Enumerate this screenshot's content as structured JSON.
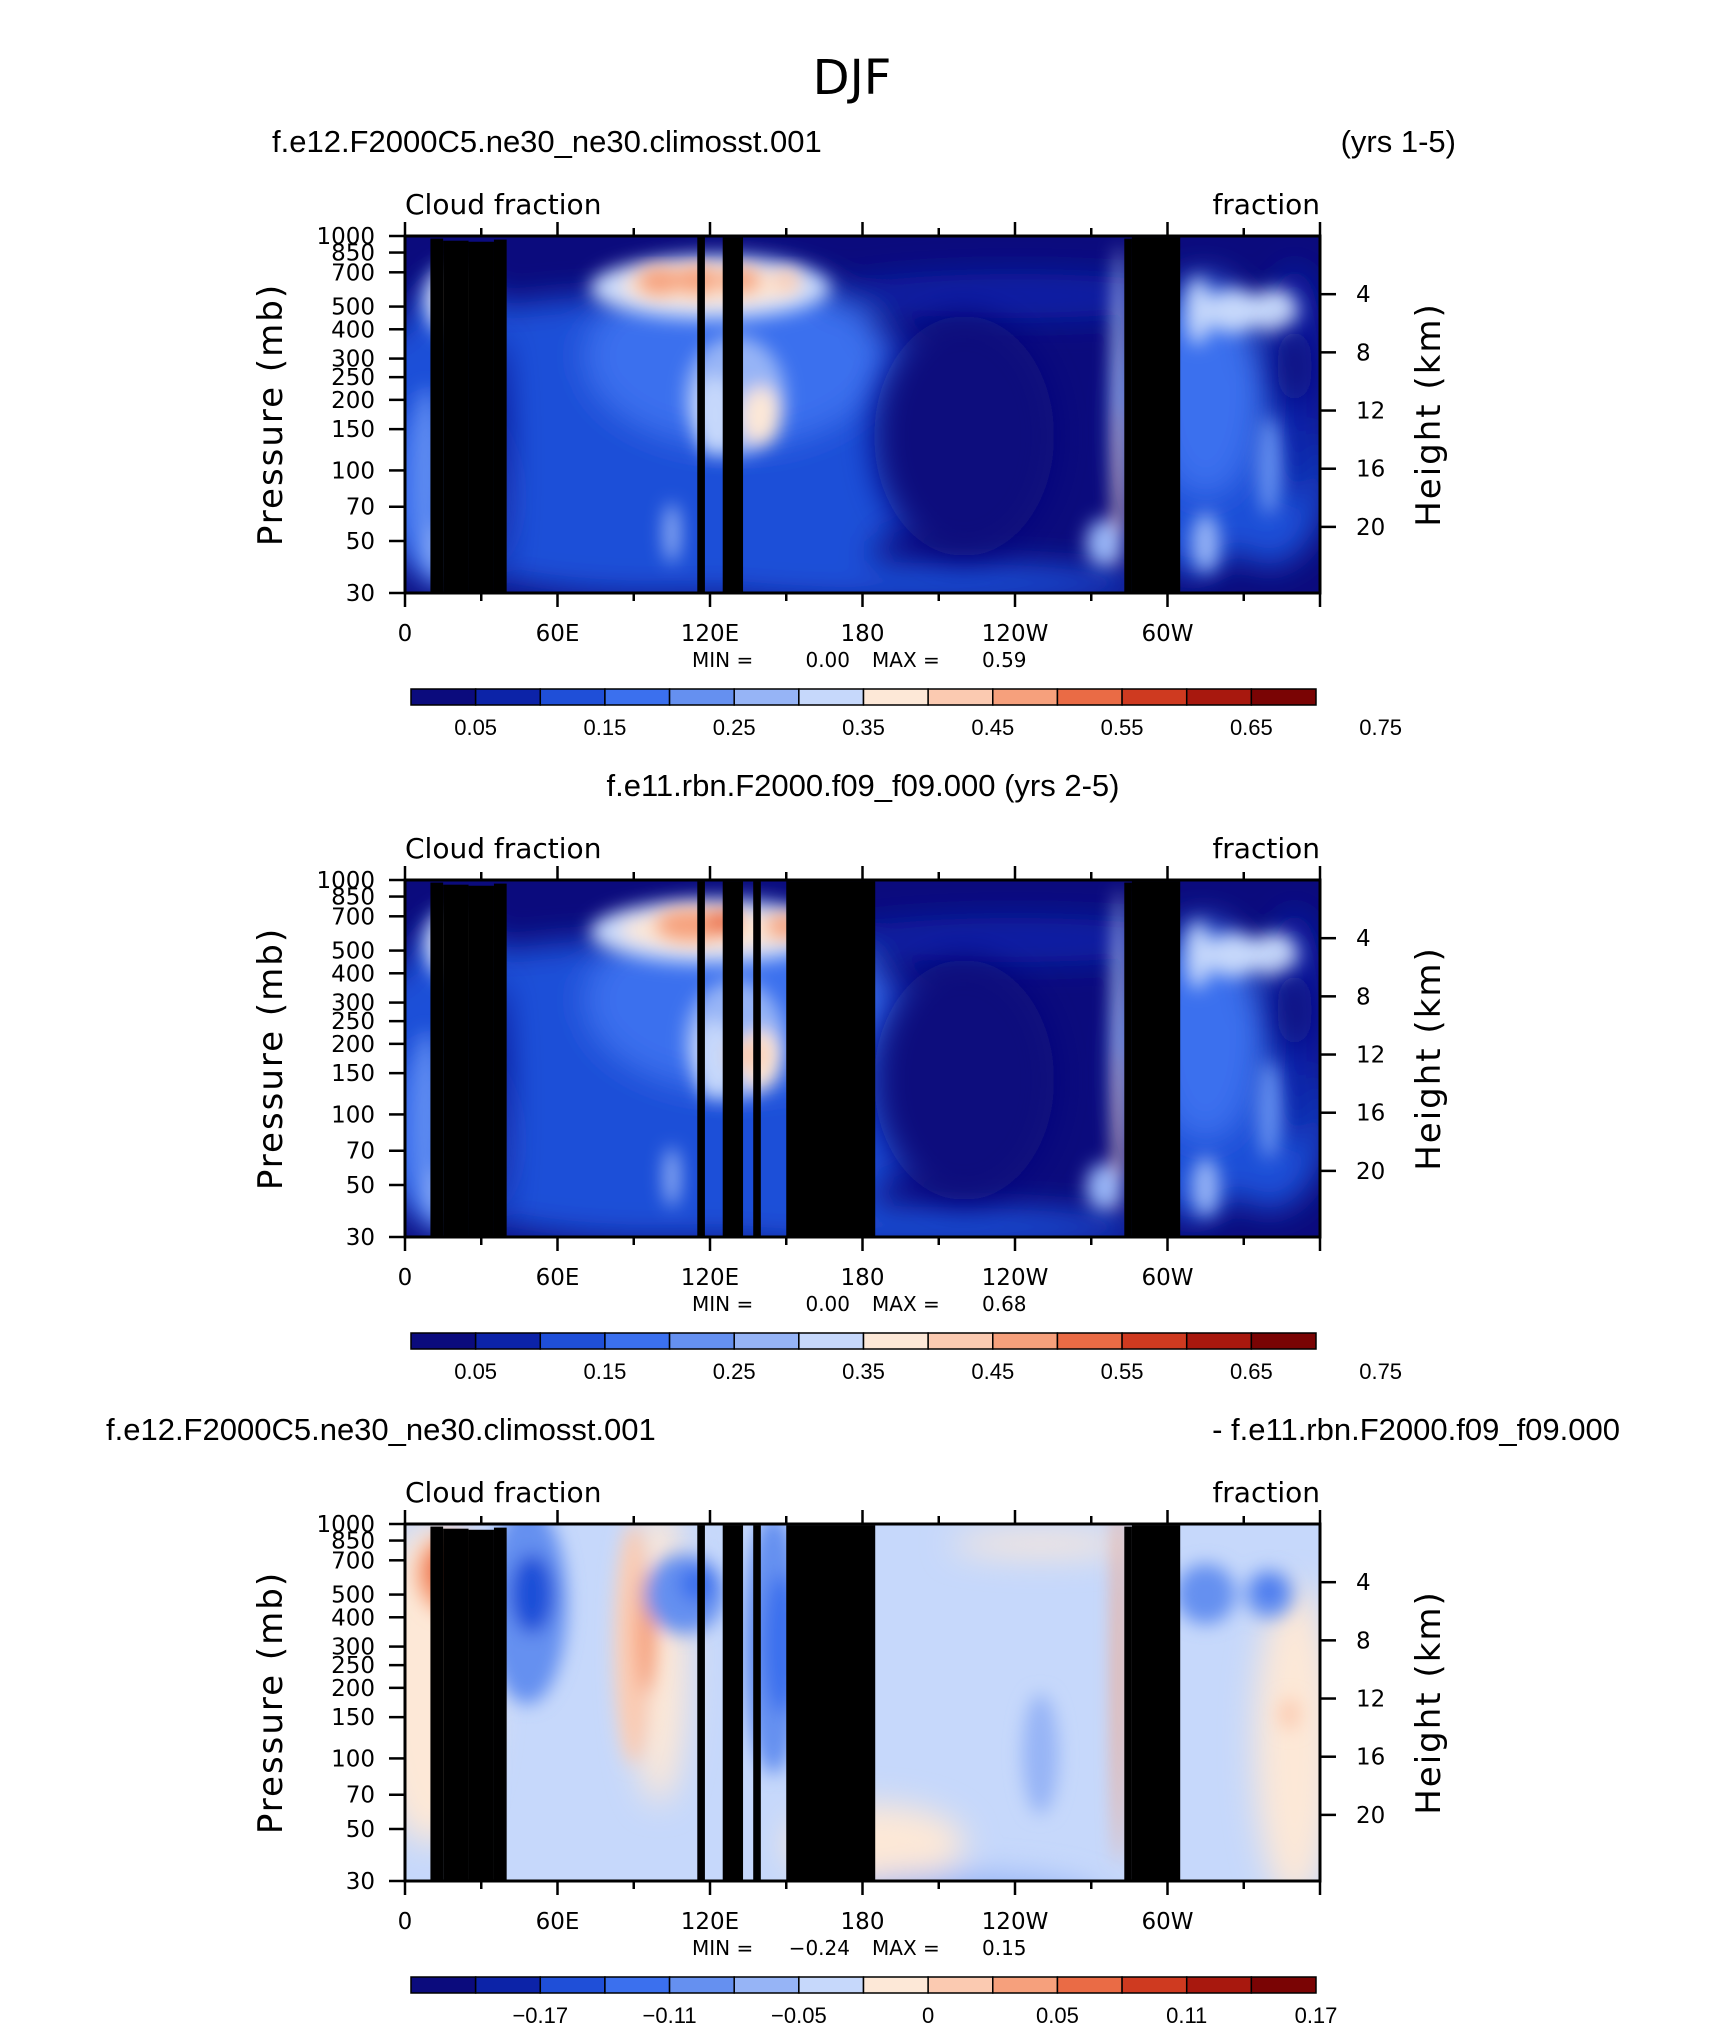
{
  "figure_title": "DJF",
  "colorbar_colors": [
    "#0b0b7d",
    "#0c23a8",
    "#1f4fd8",
    "#3b70ee",
    "#6590f0",
    "#96b4f6",
    "#c6d8fb",
    "#fde8d7",
    "#fbcab1",
    "#f6a07c",
    "#ea6b45",
    "#cf3a20",
    "#a8180e",
    "#7a0404"
  ],
  "colors": {
    "land": "#000000",
    "frame": "#000000"
  },
  "chart_data": [
    {
      "type": "heatmap",
      "left_string": "f.e12.F2000C5.ne30_ne30.climosst.001",
      "right_string": "(yrs 1-5)",
      "center_string": "",
      "sub_left": "Cloud fraction",
      "sub_right": "fraction",
      "xticks": [
        "0",
        "60E",
        "120E",
        "180",
        "120W",
        "60W"
      ],
      "yticks": [
        "30",
        "50",
        "70",
        "100",
        "150",
        "200",
        "250",
        "300",
        "400",
        "500",
        "700",
        "850",
        "1000"
      ],
      "ylabel": "Pressure (mb)",
      "y2ticks": [
        "20",
        "16",
        "12",
        "8",
        "4"
      ],
      "y2label": "Height (km)",
      "min_label": "MIN =",
      "min_value": "0.00",
      "max_label": "MAX =",
      "max_value": "0.59",
      "colorbar_labels": [
        "0.05",
        "0.15",
        "0.25",
        "0.35",
        "0.45",
        "0.55",
        "0.65",
        "0.75"
      ],
      "scale": "pos"
    },
    {
      "type": "heatmap",
      "left_string": "",
      "right_string": "",
      "center_string": "f.e11.rbn.F2000.f09_f09.000 (yrs 2-5)",
      "sub_left": "Cloud fraction",
      "sub_right": "fraction",
      "xticks": [
        "0",
        "60E",
        "120E",
        "180",
        "120W",
        "60W"
      ],
      "yticks": [
        "30",
        "50",
        "70",
        "100",
        "150",
        "200",
        "250",
        "300",
        "400",
        "500",
        "700",
        "850",
        "1000"
      ],
      "ylabel": "Pressure (mb)",
      "y2ticks": [
        "20",
        "16",
        "12",
        "8",
        "4"
      ],
      "y2label": "Height (km)",
      "min_label": "MIN =",
      "min_value": "0.00",
      "max_label": "MAX =",
      "max_value": "0.68",
      "colorbar_labels": [
        "0.05",
        "0.15",
        "0.25",
        "0.35",
        "0.45",
        "0.55",
        "0.65",
        "0.75"
      ],
      "scale": "pos"
    },
    {
      "type": "heatmap",
      "left_string": "f.e12.F2000C5.ne30_ne30.climosst.001",
      "right_string": "- f.e11.rbn.F2000.f09_f09.000",
      "center_string": "",
      "sub_left": "Cloud fraction",
      "sub_right": "fraction",
      "xticks": [
        "0",
        "60E",
        "120E",
        "180",
        "120W",
        "60W"
      ],
      "yticks": [
        "30",
        "50",
        "70",
        "100",
        "150",
        "200",
        "250",
        "300",
        "400",
        "500",
        "700",
        "850",
        "1000"
      ],
      "ylabel": "Pressure (mb)",
      "y2ticks": [
        "20",
        "16",
        "12",
        "8",
        "4"
      ],
      "y2label": "Height (km)",
      "min_label": "MIN =",
      "min_value": "−0.24",
      "max_label": "MAX =",
      "max_value": "0.15",
      "colorbar_labels": [
        "−0.17",
        "−0.11",
        "−0.05",
        "0",
        "0.05",
        "0.11",
        "0.17"
      ],
      "scale": "diff"
    }
  ]
}
